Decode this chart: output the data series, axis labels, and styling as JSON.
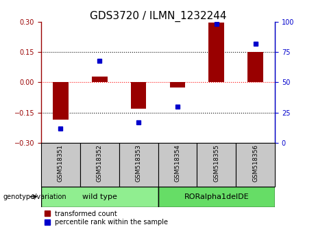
{
  "title": "GDS3720 / ILMN_1232244",
  "samples": [
    "GSM518351",
    "GSM518352",
    "GSM518353",
    "GSM518354",
    "GSM518355",
    "GSM518356"
  ],
  "group_labels": [
    "wild type",
    "RORalpha1delDE"
  ],
  "group_colors": [
    "#90EE90",
    "#66DD66"
  ],
  "transformed_counts": [
    -0.185,
    0.03,
    -0.13,
    -0.025,
    0.295,
    0.15
  ],
  "percentile_ranks": [
    12,
    68,
    17,
    30,
    98,
    82
  ],
  "bar_color": "#990000",
  "dot_color": "#0000CC",
  "ylim_left": [
    -0.3,
    0.3
  ],
  "ylim_right": [
    0,
    100
  ],
  "yticks_left": [
    -0.3,
    -0.15,
    0,
    0.15,
    0.3
  ],
  "yticks_right": [
    0,
    25,
    50,
    75,
    100
  ],
  "hlines": [
    0.15,
    0,
    -0.15
  ],
  "hline_colors": [
    "black",
    "red",
    "black"
  ],
  "hline_styles": [
    "dotted",
    "dotted",
    "dotted"
  ],
  "genotype_label": "genotype/variation",
  "legend_entries": [
    "transformed count",
    "percentile rank within the sample"
  ],
  "title_fontsize": 11,
  "tick_fontsize": 7,
  "sample_fontsize": 6.5,
  "group_fontsize": 8,
  "legend_fontsize": 7
}
